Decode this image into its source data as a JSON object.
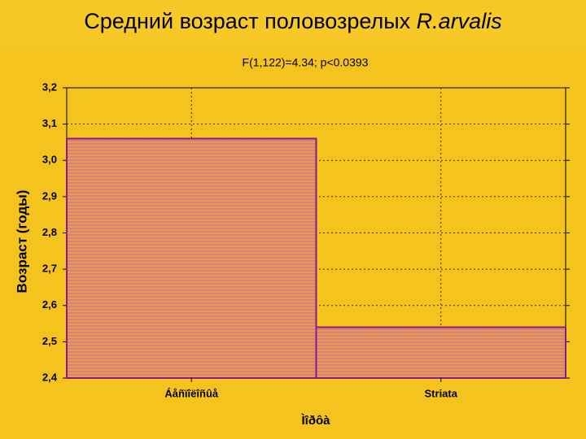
{
  "chart_data": {
    "type": "bar",
    "title": {
      "text": "Средний возраст половозрелых",
      "species": "R.arvalis"
    },
    "subtitle": "F(1,122)=4.34; p<0.0393",
    "ylabel": "Возраст (годы)",
    "xlabel": "Ìîðôà",
    "categories": [
      "Áåñïîëîñûå",
      "Striata"
    ],
    "values": [
      3.06,
      2.54
    ],
    "color": "#e89a58",
    "edgecolor": "#8b1a8b",
    "ylim": [
      2.4,
      3.2
    ],
    "yticks": [
      {
        "value": 2.4,
        "label": "2,4"
      },
      {
        "value": 2.5,
        "label": "2,5"
      },
      {
        "value": 2.6,
        "label": "2,6"
      },
      {
        "value": 2.7,
        "label": "2,7"
      },
      {
        "value": 2.8,
        "label": "2,8"
      },
      {
        "value": 2.9,
        "label": "2,9"
      },
      {
        "value": 3.0,
        "label": "3,0"
      },
      {
        "value": 3.1,
        "label": "3,1"
      },
      {
        "value": 3.2,
        "label": "3,2"
      }
    ],
    "grid": true
  }
}
